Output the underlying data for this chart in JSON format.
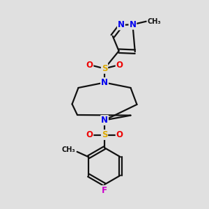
{
  "bg_color": "#e0e0e0",
  "atom_colors": {
    "N": "#0000ee",
    "S": "#ddaa00",
    "O": "#ee0000",
    "F": "#cc00cc",
    "C": "#111111"
  },
  "bond_color": "#111111",
  "bond_width": 1.6,
  "font_size_atom": 8.5,
  "font_size_methyl": 7.0
}
